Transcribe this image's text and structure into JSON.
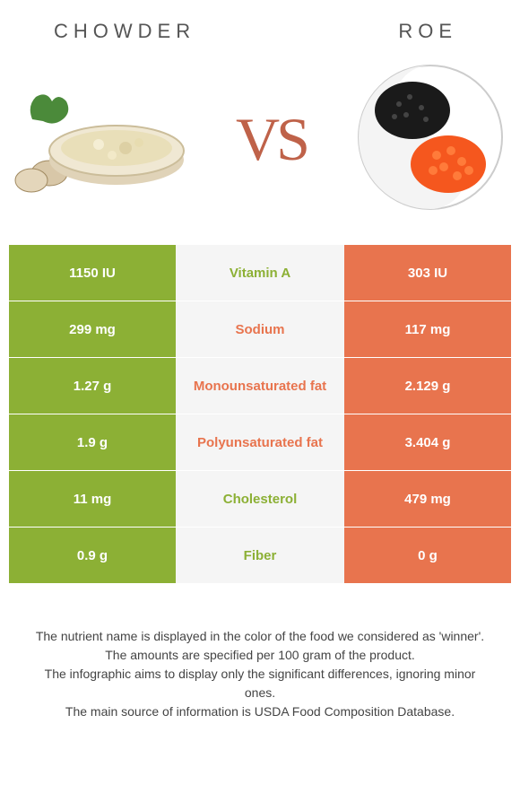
{
  "header": {
    "left_title": "CHOWDER",
    "right_title": "ROE",
    "vs_label": "VS"
  },
  "colors": {
    "left_col": "#8cb035",
    "right_col": "#e8744e",
    "mid_col": "#f5f5f5",
    "vs_color": "#bf6249"
  },
  "table": {
    "rows": [
      {
        "left": "1150 IU",
        "nutrient": "Vitamin A",
        "right": "303 IU",
        "winner": "left"
      },
      {
        "left": "299 mg",
        "nutrient": "Sodium",
        "right": "117 mg",
        "winner": "right"
      },
      {
        "left": "1.27 g",
        "nutrient": "Monounsaturated fat",
        "right": "2.129 g",
        "winner": "right"
      },
      {
        "left": "1.9 g",
        "nutrient": "Polyunsaturated fat",
        "right": "3.404 g",
        "winner": "right"
      },
      {
        "left": "11 mg",
        "nutrient": "Cholesterol",
        "right": "479 mg",
        "winner": "left"
      },
      {
        "left": "0.9 g",
        "nutrient": "Fiber",
        "right": "0 g",
        "winner": "left"
      }
    ]
  },
  "footnotes": {
    "line1": "The nutrient name is displayed in the color of the food we considered as 'winner'.",
    "line2": "The amounts are specified per 100 gram of the product.",
    "line3": "The infographic aims to display only the significant differences, ignoring minor ones.",
    "line4": "The main source of information is USDA Food Composition Database."
  }
}
